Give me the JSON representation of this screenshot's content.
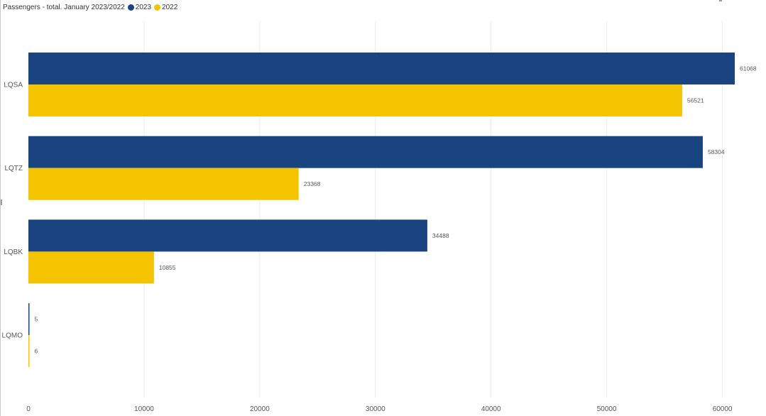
{
  "chart_data": {
    "type": "bar",
    "orientation": "horizontal",
    "title": "Passengers - total. January 2023/2022",
    "categories": [
      "LQSA",
      "LQTZ",
      "LQBK",
      "LQMO"
    ],
    "series": [
      {
        "name": "2023",
        "color": "#1a4480",
        "values": [
          61068,
          58304,
          34488,
          5
        ]
      },
      {
        "name": "2022",
        "color": "#f5c400",
        "values": [
          56521,
          23368,
          10855,
          6
        ]
      }
    ],
    "xlim": [
      0,
      61068
    ],
    "x_ticks": [
      0,
      10000,
      20000,
      30000,
      40000,
      50000,
      60000
    ],
    "grid": true,
    "legend_placement": "top-left",
    "data_labels": true
  }
}
